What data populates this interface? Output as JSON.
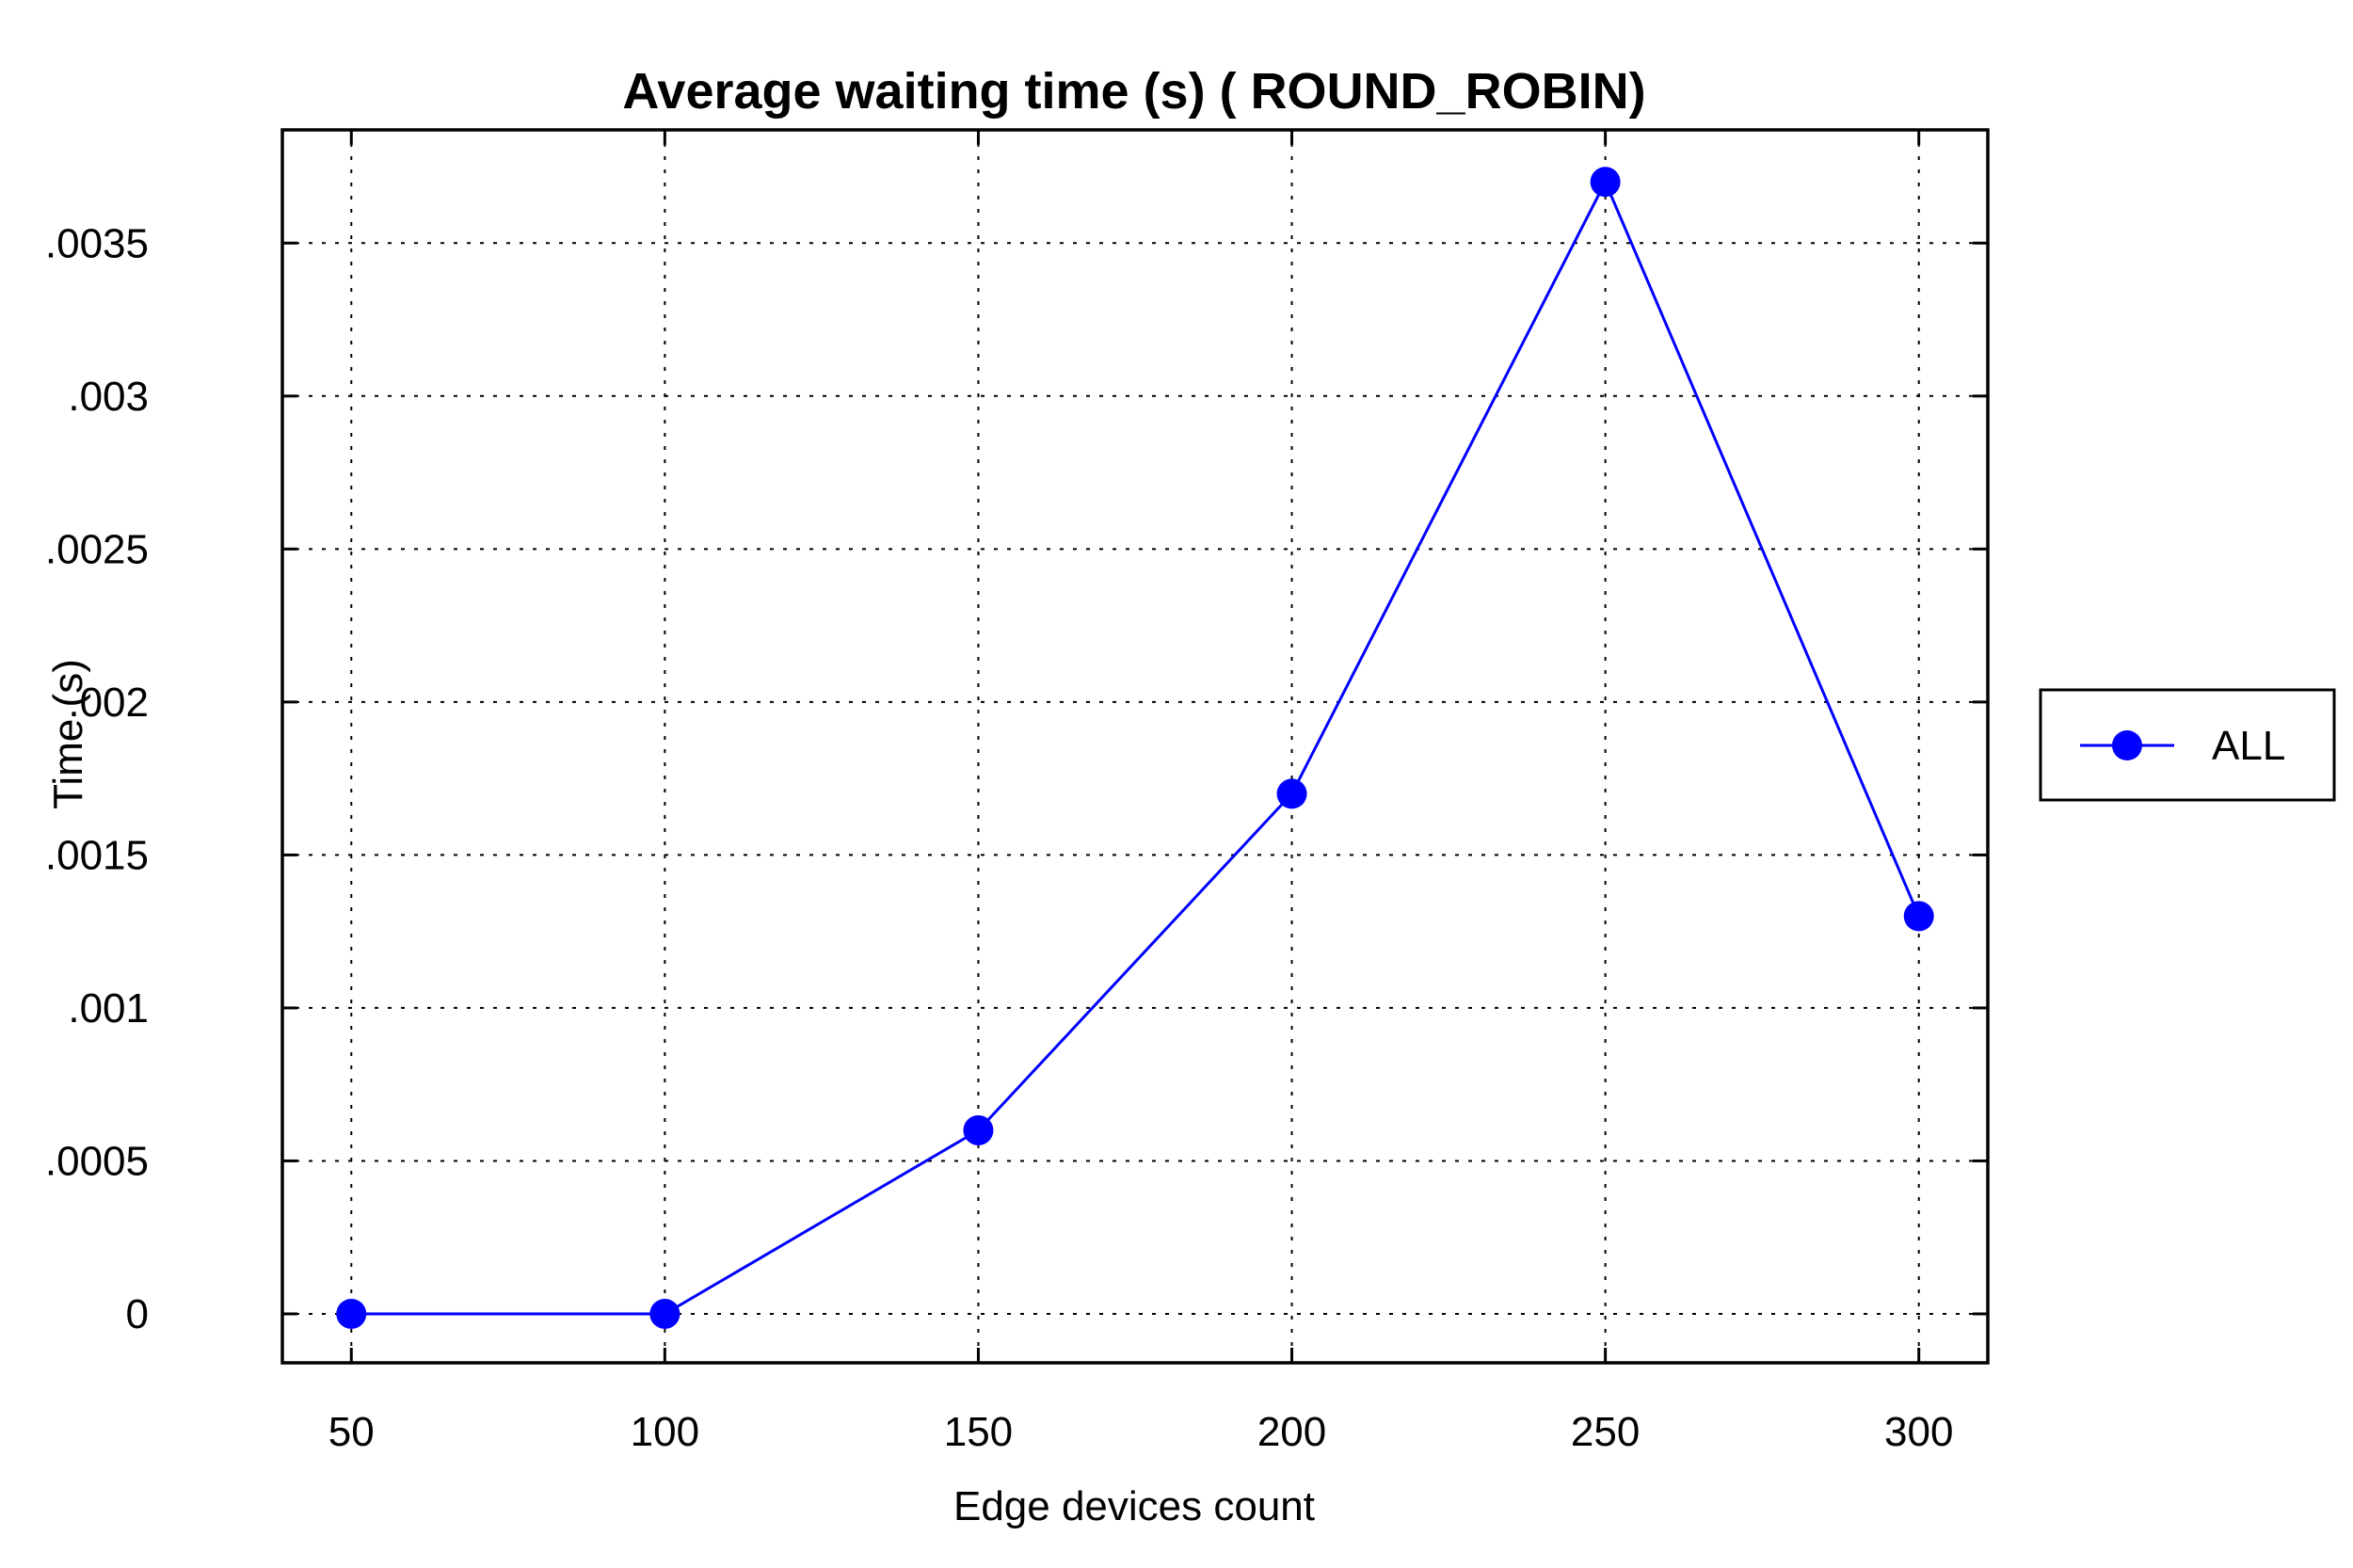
{
  "chart_data": {
    "type": "line",
    "title": "Average waiting time (s) ( ROUND_ROBIN)",
    "xlabel": "Edge devices count",
    "ylabel": "Time (s)",
    "x": [
      50,
      100,
      150,
      200,
      250,
      300
    ],
    "x_tick_labels": [
      "50",
      "100",
      "150",
      "200",
      "250",
      "300"
    ],
    "y_ticks": [
      0,
      0.0005,
      0.001,
      0.0015,
      0.002,
      0.0025,
      0.003,
      0.0035
    ],
    "y_tick_labels": [
      "0",
      ".0005",
      ".001",
      ".0015",
      ".002",
      ".0025",
      ".003",
      ".0035"
    ],
    "xlim": [
      39,
      311
    ],
    "ylim": [
      -0.00016,
      0.00387
    ],
    "grid": true,
    "legend_position": "right",
    "series": [
      {
        "name": "ALL",
        "color": "#0000ff",
        "marker": "circle",
        "values": [
          0.0,
          0.0,
          0.0006,
          0.0017,
          0.0037,
          0.0013
        ]
      }
    ]
  }
}
